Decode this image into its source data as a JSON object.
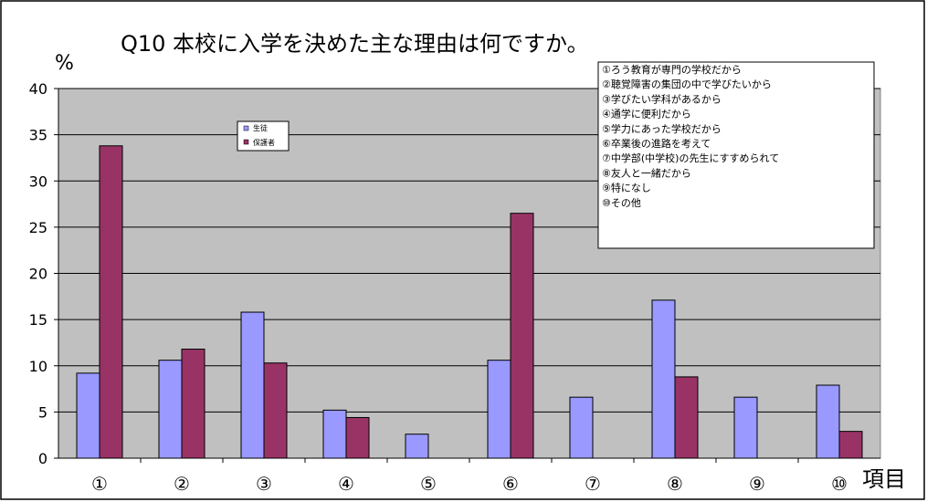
{
  "chart_data": {
    "type": "bar",
    "title": "Q10 本校に入学を決めた主な理由は何ですか。",
    "ylabel": "%",
    "xlabel": "項目",
    "ylim": [
      0,
      40
    ],
    "yticks": [
      0,
      5,
      10,
      15,
      20,
      25,
      30,
      35,
      40
    ],
    "categories": [
      "①",
      "②",
      "③",
      "④",
      "⑤",
      "⑥",
      "⑦",
      "⑧",
      "⑨",
      "⑩"
    ],
    "series": [
      {
        "name": "生徒",
        "color": "#9999ff",
        "values": [
          9.2,
          10.6,
          15.8,
          5.2,
          2.6,
          10.6,
          6.6,
          17.1,
          6.6,
          7.9
        ]
      },
      {
        "name": "保護者",
        "color": "#993366",
        "values": [
          33.8,
          11.8,
          10.3,
          4.4,
          0,
          26.5,
          0,
          8.8,
          0,
          2.9
        ]
      }
    ],
    "grid": true,
    "legend": "top-left",
    "category_legend": [
      "①ろう教育が専門の学校だから",
      "②聴覚障害の集団の中で学びたいから",
      "③学びたい学科があるから",
      "④通学に便利だから",
      "⑤学力にあった学校だから",
      "⑥卒業後の進路を考えて",
      "⑦中学部(中学校)の先生にすすめられて",
      "⑧友人と一緒だから",
      "⑨特になし",
      "⑩その他"
    ],
    "colors": {
      "plot_bg": "#c0c0c0",
      "page_bg": "#ffffff"
    }
  }
}
